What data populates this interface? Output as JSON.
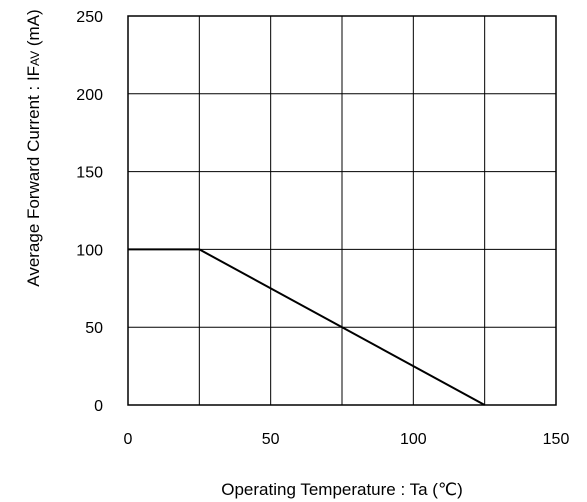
{
  "chart_data": {
    "type": "line",
    "xlabel_parts": [
      "Operating Temperature : Ta (",
      "℃",
      ")"
    ],
    "ylabel_parts": [
      "Average Forward Current : IF",
      "AV",
      " (mA)"
    ],
    "xlim": [
      0,
      150
    ],
    "ylim": [
      0,
      250
    ],
    "x_ticks": [
      0,
      50,
      100,
      150
    ],
    "y_ticks": [
      0,
      50,
      100,
      150,
      200,
      250
    ],
    "x_tick_labels": [
      "0",
      "50",
      "100",
      "150"
    ],
    "y_tick_labels": [
      "0",
      "50",
      "100",
      "150",
      "200",
      "250"
    ],
    "x_grid": [
      0,
      25,
      50,
      75,
      100,
      125,
      150
    ],
    "y_grid": [
      0,
      50,
      100,
      150,
      200,
      250
    ],
    "grid": true,
    "series": [
      {
        "x": [
          0,
          25,
          125
        ],
        "y": [
          100,
          100,
          0
        ],
        "color": "#000000"
      }
    ]
  }
}
